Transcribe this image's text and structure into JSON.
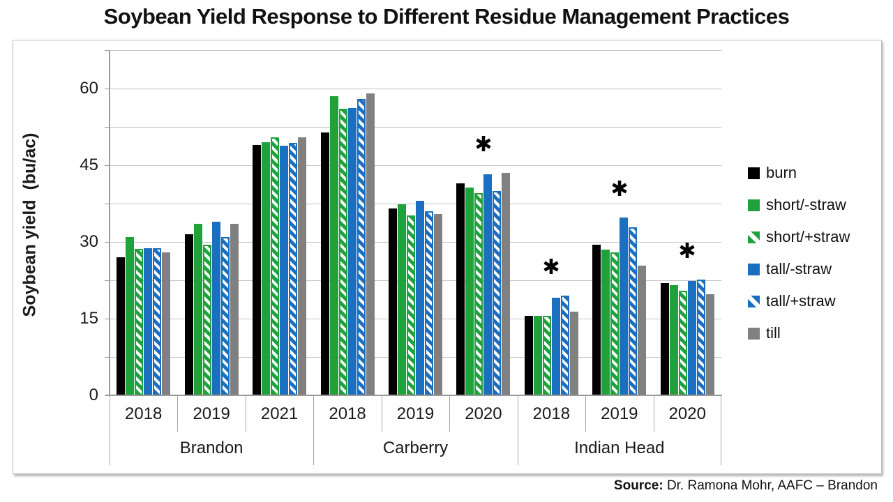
{
  "title": "Soybean Yield Response to Different Residue Management Practices",
  "source": {
    "label": "Source:",
    "text": "Dr. Ramona Mohr, AAFC – Brandon"
  },
  "chart_data": {
    "type": "bar",
    "title": "Soybean Yield Response to Different Residue Management Practices",
    "ylabel": "Soybean yield  (bu/ac)",
    "y_axis": {
      "min": 0,
      "max": 67.5,
      "gridline_step": 7.5,
      "tick_labels": [
        0,
        15,
        30,
        45,
        60
      ],
      "grid": true
    },
    "legend_position": "right",
    "locations": [
      {
        "name": "Brandon",
        "years": [
          "2018",
          "2019",
          "2021"
        ]
      },
      {
        "name": "Carberry",
        "years": [
          "2018",
          "2019",
          "2020"
        ]
      },
      {
        "name": "Indian Head",
        "years": [
          "2018",
          "2019",
          "2020"
        ]
      }
    ],
    "groups": [
      {
        "location": "Brandon",
        "year": "2018",
        "significant": false
      },
      {
        "location": "Brandon",
        "year": "2019",
        "significant": false
      },
      {
        "location": "Brandon",
        "year": "2021",
        "significant": false
      },
      {
        "location": "Carberry",
        "year": "2018",
        "significant": false
      },
      {
        "location": "Carberry",
        "year": "2019",
        "significant": false
      },
      {
        "location": "Carberry",
        "year": "2020",
        "significant": true
      },
      {
        "location": "Indian Head",
        "year": "2018",
        "significant": true
      },
      {
        "location": "Indian Head",
        "year": "2019",
        "significant": true
      },
      {
        "location": "Indian Head",
        "year": "2020",
        "significant": true
      }
    ],
    "series": [
      {
        "name": "burn",
        "color": "#000000",
        "pattern": "solid",
        "values": [
          27.0,
          31.5,
          49.0,
          51.4,
          36.5,
          41.5,
          15.5,
          29.4,
          22.0
        ]
      },
      {
        "name": "short/-straw",
        "color": "#1fa23c",
        "pattern": "solid",
        "values": [
          31.0,
          33.5,
          49.5,
          58.5,
          37.4,
          40.6,
          15.5,
          28.5,
          21.5
        ]
      },
      {
        "name": "short/+straw",
        "color": "#1fa23c",
        "pattern": "hatch",
        "values": [
          28.6,
          29.5,
          50.4,
          56.1,
          35.2,
          39.5,
          15.6,
          28.0,
          20.5
        ]
      },
      {
        "name": "tall/-straw",
        "color": "#1b6fc0",
        "pattern": "solid",
        "values": [
          28.8,
          34.0,
          48.8,
          56.2,
          38.1,
          43.2,
          19.1,
          34.8,
          22.3
        ]
      },
      {
        "name": "tall/+straw",
        "color": "#1b6fc0",
        "pattern": "hatch",
        "values": [
          28.8,
          31.0,
          49.3,
          58.0,
          36.0,
          40.0,
          19.5,
          32.8,
          22.6
        ]
      },
      {
        "name": "till",
        "color": "#808080",
        "pattern": "solid",
        "values": [
          28.0,
          33.5,
          50.5,
          59.0,
          35.5,
          43.5,
          16.4,
          25.3,
          19.8
        ]
      }
    ],
    "significance_marker": "*",
    "colors": {
      "gridline": "#c3c3c3",
      "axis": "#9a9a9a",
      "marker": "#000000"
    }
  }
}
